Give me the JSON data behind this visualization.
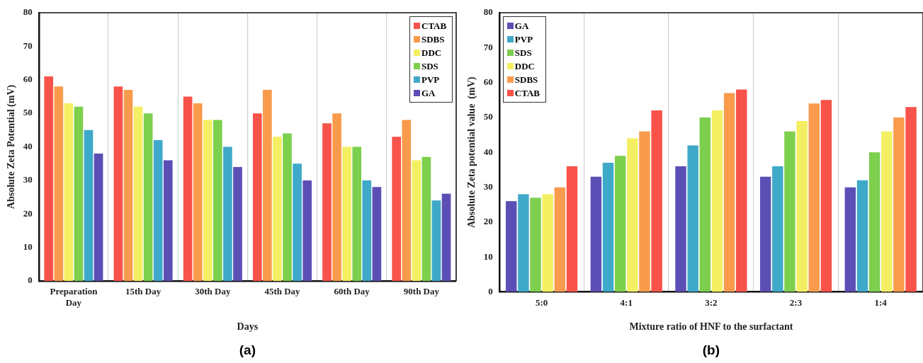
{
  "chart_data": [
    {
      "type": "bar",
      "xlabel": "Days",
      "ylabel": "Absolute Zeta Potential (mV)",
      "annotations": [
        "(a)"
      ],
      "categories": [
        "Preparation Day",
        "15th Day",
        "30th Day",
        "45th Day",
        "60th Day",
        "90th Day"
      ],
      "series": [
        {
          "name": "CTAB",
          "color": "#f8534a",
          "values": [
            61,
            58,
            55,
            50,
            47,
            43
          ]
        },
        {
          "name": "SDBS",
          "color": "#f99b4c",
          "values": [
            58,
            57,
            53,
            57,
            50,
            48
          ]
        },
        {
          "name": "DDC",
          "color": "#f4ef62",
          "values": [
            53,
            52,
            48,
            43,
            40,
            36
          ]
        },
        {
          "name": "SDS",
          "color": "#7dcf4e",
          "values": [
            52,
            50,
            48,
            44,
            40,
            37
          ]
        },
        {
          "name": "PVP",
          "color": "#3fa9c9",
          "values": [
            45,
            42,
            40,
            35,
            30,
            24
          ]
        },
        {
          "name": "GA",
          "color": "#5b4fb5",
          "values": [
            38,
            36,
            34,
            30,
            28,
            26
          ]
        }
      ],
      "ylim": [
        0,
        80
      ],
      "yticks": [
        0,
        10,
        20,
        30,
        40,
        50,
        60,
        70,
        80
      ],
      "grid": "x",
      "legend": "top right"
    },
    {
      "type": "bar",
      "xlabel": "Mixture ratio of HNF to the surfactant",
      "ylabel": "Absolute Zeta potential value  (mV)",
      "annotations": [
        "(b)"
      ],
      "categories": [
        "5:0",
        "4:1",
        "3:2",
        "2:3",
        "1:4"
      ],
      "series": [
        {
          "name": "GA",
          "color": "#5b4fb5",
          "values": [
            26,
            33,
            36,
            33,
            30
          ]
        },
        {
          "name": "PVP",
          "color": "#3fa9c9",
          "values": [
            28,
            37,
            42,
            36,
            32
          ]
        },
        {
          "name": "SDS",
          "color": "#7dcf4e",
          "values": [
            27,
            39,
            50,
            46,
            40
          ]
        },
        {
          "name": "DDC",
          "color": "#f4ef62",
          "values": [
            28,
            44,
            52,
            49,
            46
          ]
        },
        {
          "name": "SDBS",
          "color": "#f99b4c",
          "values": [
            30,
            46,
            57,
            54,
            50
          ]
        },
        {
          "name": "CTAB",
          "color": "#f8534a",
          "values": [
            36,
            52,
            58,
            55,
            53
          ]
        }
      ],
      "ylim": [
        0,
        80
      ],
      "yticks": [
        0,
        10,
        20,
        30,
        40,
        50,
        60,
        70,
        80
      ],
      "grid": "x",
      "legend": "top left"
    }
  ]
}
